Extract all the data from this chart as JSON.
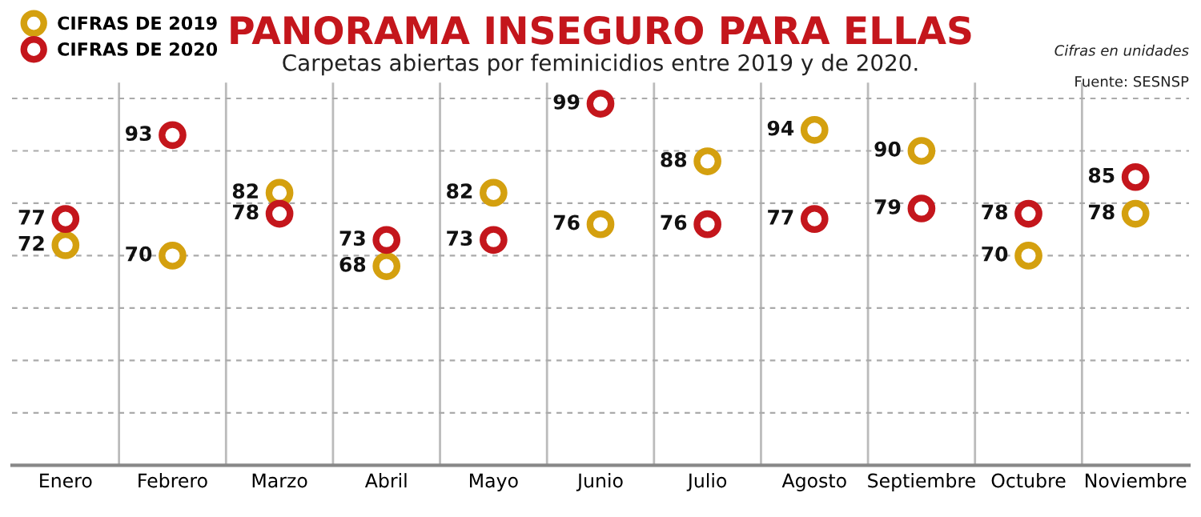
{
  "chart_data": {
    "type": "scatter",
    "title": "PANORAMA INSEGURO PARA ELLAS",
    "subtitle": "Carpetas abiertas por feminicidios entre 2019 y de 2020.",
    "categories": [
      "Enero",
      "Febrero",
      "Marzo",
      "Abril",
      "Mayo",
      "Junio",
      "Julio",
      "Agosto",
      "Septiembre",
      "Octubre",
      "Noviembre"
    ],
    "series": [
      {
        "name": "CIFRAS DE 2019",
        "color": "#d4a00f",
        "values": [
          72,
          70,
          82,
          68,
          82,
          76,
          88,
          94,
          90,
          70,
          78
        ]
      },
      {
        "name": "CIFRAS DE 2020",
        "color": "#c4161c",
        "values": [
          77,
          93,
          78,
          73,
          73,
          99,
          76,
          77,
          79,
          78,
          85
        ]
      }
    ],
    "ylim": [
      30,
      103
    ],
    "yticks": [
      {
        "value": 40,
        "label": null
      },
      {
        "value": 50,
        "label": null
      },
      {
        "value": 60,
        "label": null
      },
      {
        "value": 70,
        "label": null
      },
      {
        "value": 80,
        "label": null
      },
      {
        "value": 90,
        "label": null
      },
      {
        "value": 100,
        "label": null
      }
    ],
    "tick_labels": "x",
    "grid": true,
    "legend": "top left",
    "marker": "circle",
    "data_labels": true,
    "annotations": [
      "Cifras en unidades",
      "Fuente: SESNSP"
    ]
  }
}
